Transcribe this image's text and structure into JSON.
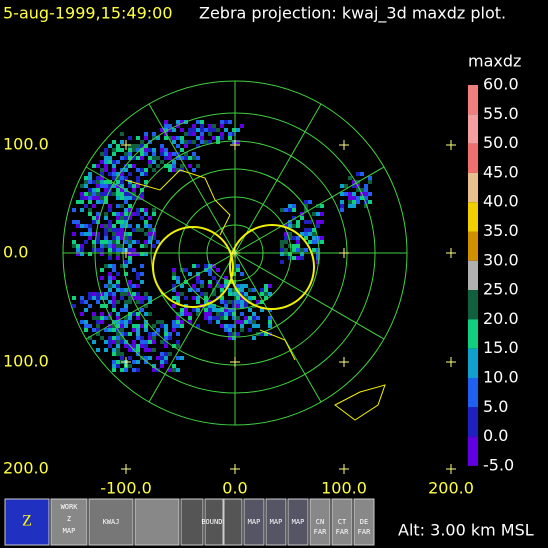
{
  "header": {
    "time": "5-aug-1999,15:49:00",
    "title": "Zebra projection: kwaj_3d maxdz plot."
  },
  "axes": {
    "y_labels": [
      "100.0",
      "0.0",
      "100.0",
      "200.0"
    ],
    "x_labels": [
      "-100.0",
      "0.0",
      "100.0",
      "200.0"
    ]
  },
  "colorbar": {
    "title": "maxdz",
    "labels": [
      "60.0",
      "55.0",
      "50.0",
      "45.0",
      "40.0",
      "35.0",
      "30.0",
      "25.0",
      "20.0",
      "15.0",
      "10.0",
      "5.0",
      "0.0",
      "-5.0"
    ],
    "colors": [
      "#f08080",
      "#f4a0a0",
      "#f07070",
      "#e8c090",
      "#f0d000",
      "#d09000",
      "#b0b0b0",
      "#106040",
      "#10d080",
      "#10a0d0",
      "#2060f0",
      "#2020c0",
      "#6000e0"
    ]
  },
  "toolbar": {
    "work": [
      "WORK",
      "Z",
      "MAP"
    ],
    "kwaj": "KWAJ",
    "bounds": "BOUNDS",
    "maps": [
      "MAP",
      "MAP",
      "MAP"
    ],
    "far": [
      [
        "CN",
        "FAR"
      ],
      [
        "CT",
        "FAR"
      ],
      [
        "DE",
        "FAR"
      ]
    ]
  },
  "status": {
    "altitude": "Alt: 3.00 km MSL"
  }
}
